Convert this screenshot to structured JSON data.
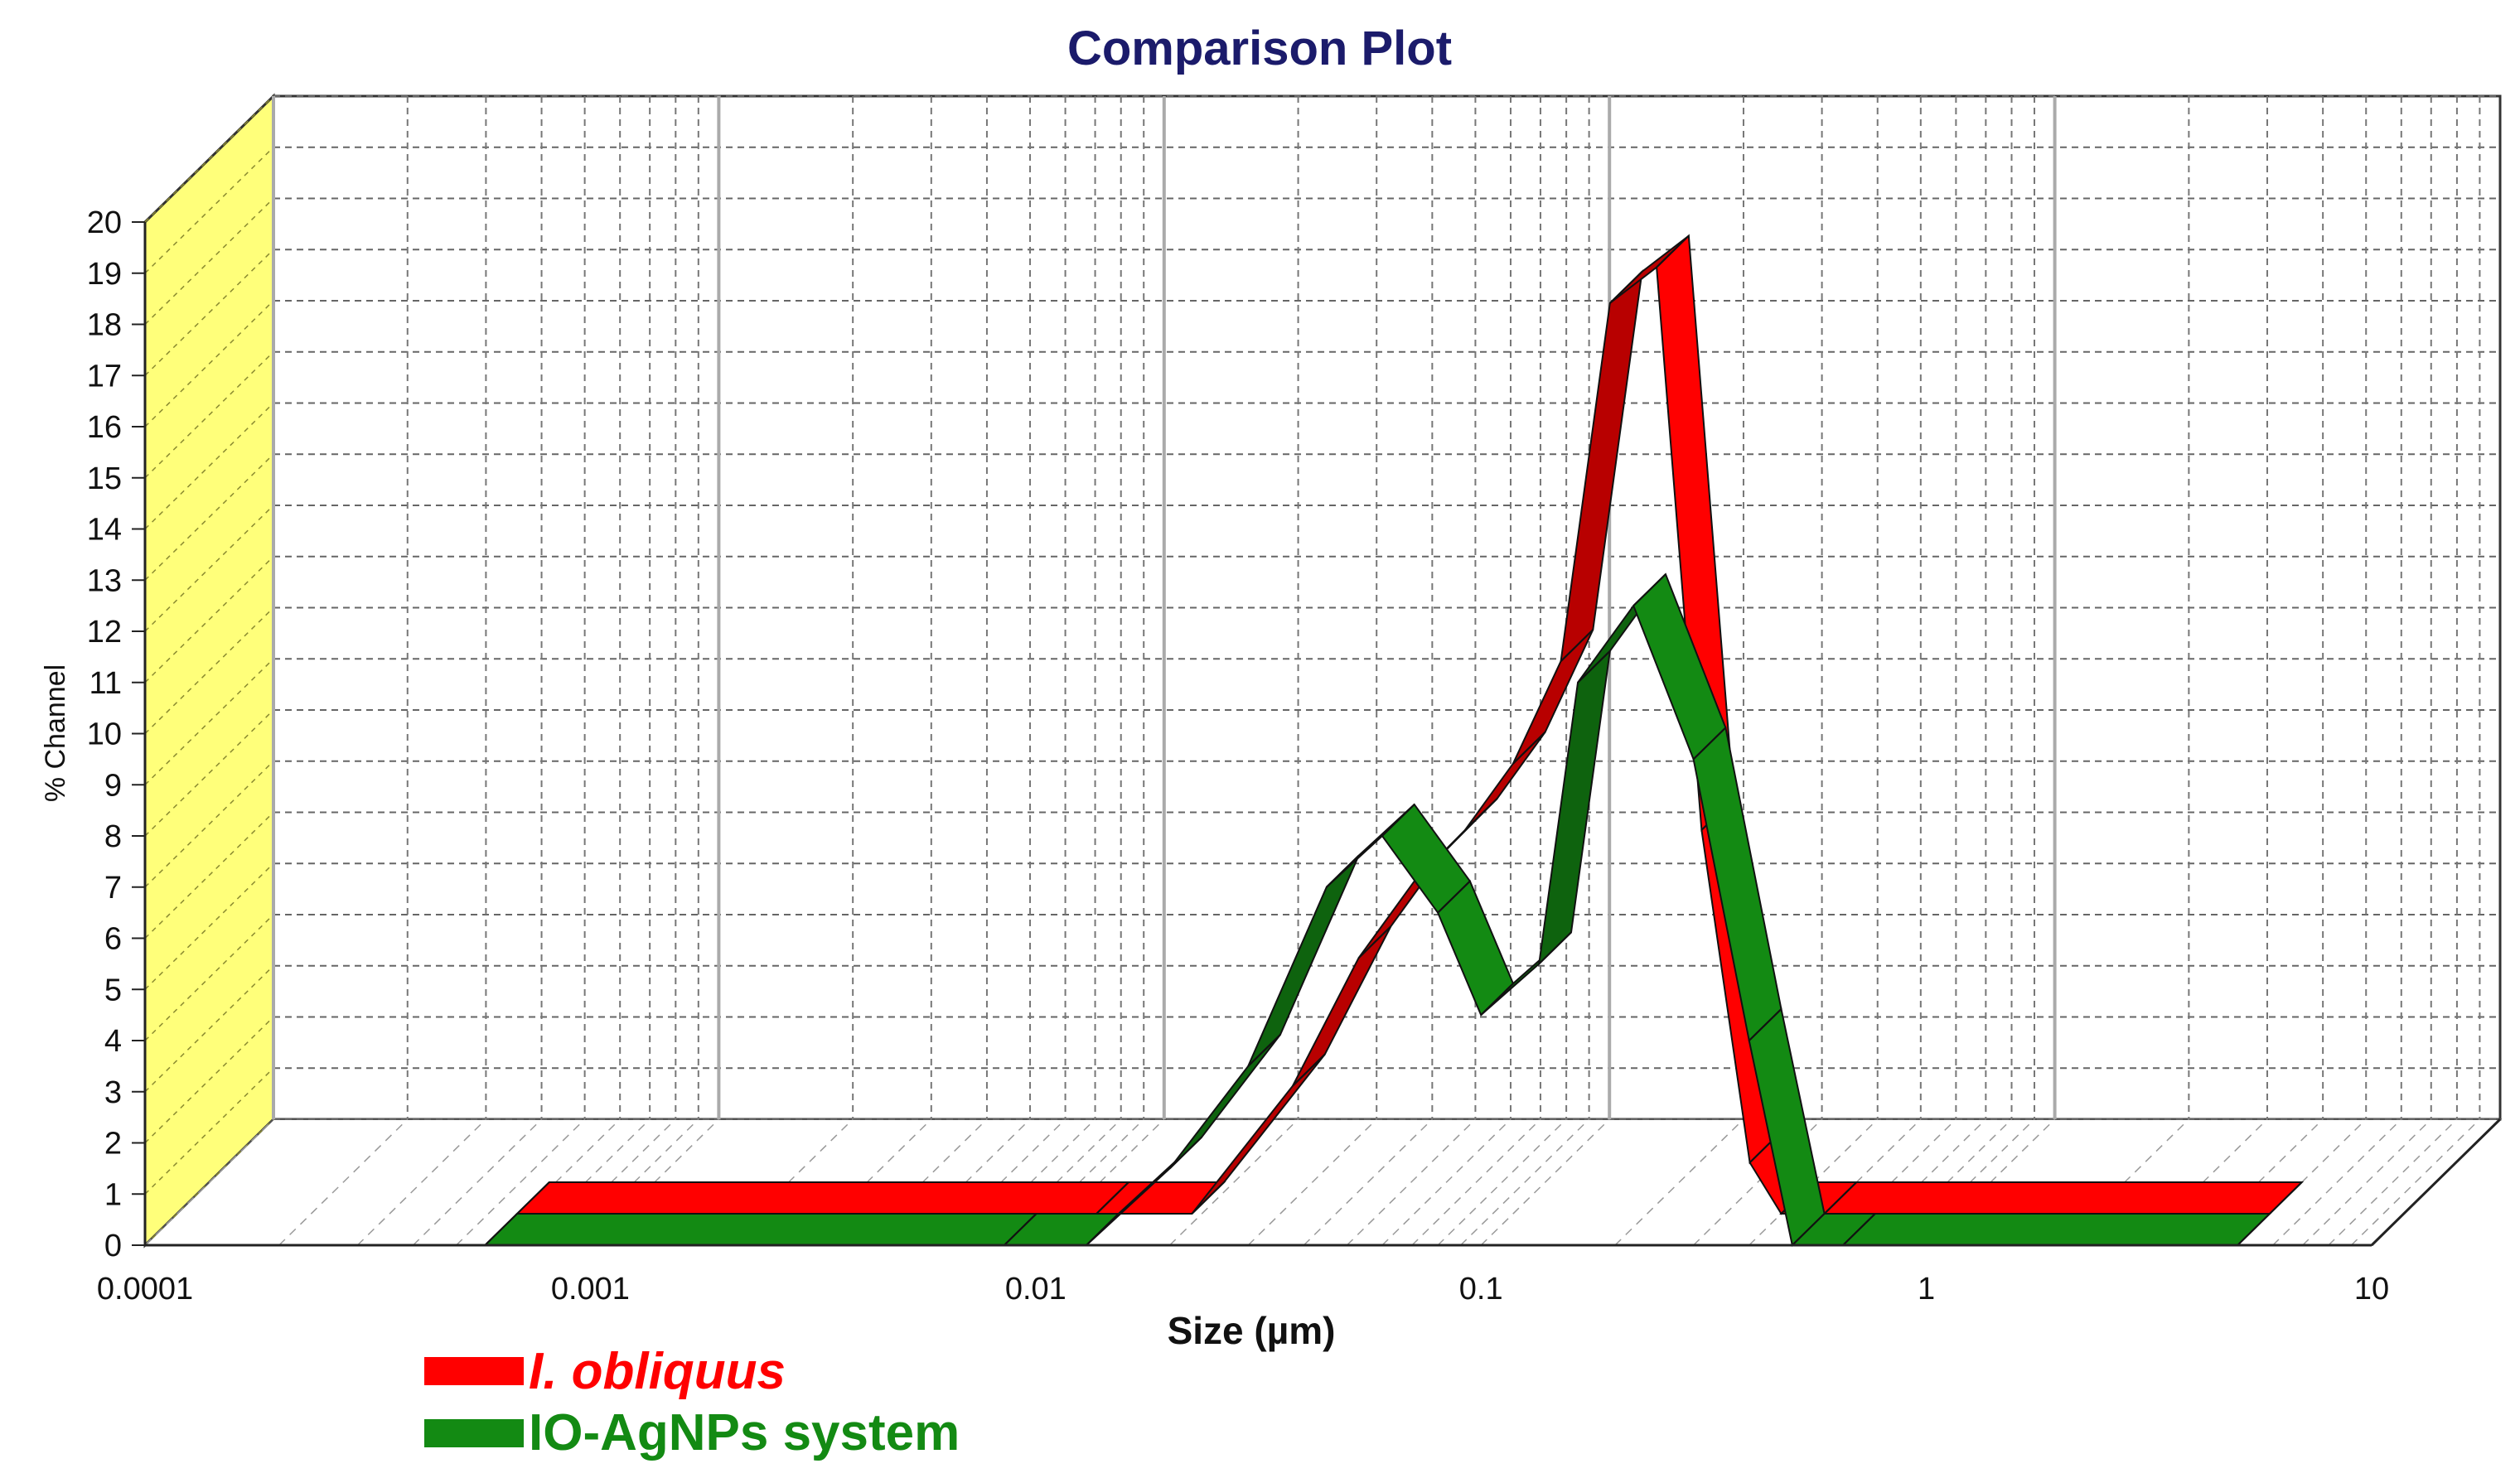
{
  "chart_data": {
    "type": "area",
    "style": "3d-ribbon",
    "title": "Comparison Plot",
    "xlabel": "Size (µm)",
    "ylabel": "% Channel",
    "xscale": "log",
    "xlim": [
      0.0001,
      10
    ],
    "ylim": [
      0,
      20
    ],
    "xticks": [
      "0.0001",
      "0.001",
      "0.01",
      "0.1",
      "1",
      "10"
    ],
    "yticks": [
      "0",
      "1",
      "2",
      "3",
      "4",
      "5",
      "6",
      "7",
      "8",
      "9",
      "10",
      "11",
      "12",
      "13",
      "14",
      "15",
      "16",
      "17",
      "18",
      "19",
      "20"
    ],
    "grid": true,
    "legend_position": "bottom-left",
    "series": [
      {
        "name": "I. obliquus",
        "color": "#ff0000",
        "x": [
          0.00058,
          0.0116,
          0.019,
          0.032,
          0.045,
          0.06,
          0.078,
          0.1,
          0.128,
          0.165,
          0.21,
          0.265,
          0.34,
          0.4,
          0.5,
          5.0
        ],
        "y": [
          0,
          0,
          0,
          2.5,
          5,
          6.5,
          7.5,
          8.8,
          10.8,
          17.8,
          18.5,
          7.5,
          1,
          0,
          0,
          0
        ]
      },
      {
        "name": "IO-AgNPs system",
        "color": "#138a13",
        "x": [
          0.00058,
          0.0085,
          0.013,
          0.02,
          0.03,
          0.045,
          0.06,
          0.08,
          0.1,
          0.135,
          0.165,
          0.22,
          0.3,
          0.4,
          0.5,
          0.65,
          5.0
        ],
        "y": [
          0,
          0,
          0,
          1.5,
          3.5,
          7,
          8,
          6.5,
          4.5,
          5.5,
          11,
          12.5,
          9.5,
          4,
          0,
          0,
          0
        ]
      }
    ]
  },
  "legend": {
    "items": [
      {
        "label": "I. obliquus",
        "color": "#ff0000"
      },
      {
        "label": "IO-AgNPs system",
        "color": "#138a13"
      }
    ]
  }
}
